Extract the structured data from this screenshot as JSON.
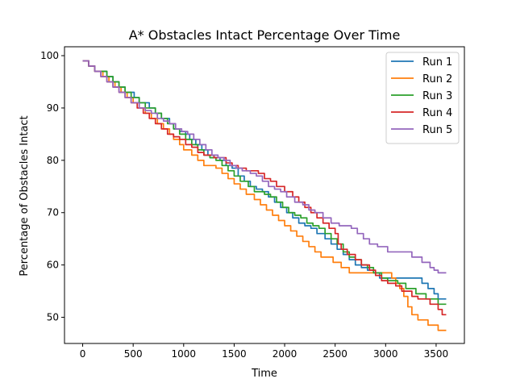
{
  "chart_data": {
    "type": "line",
    "title": "A* Obstacles Intact Percentage Over Time",
    "xlabel": "Time",
    "ylabel": "Percentage of Obstacles Intact",
    "xlim": [
      -180,
      3780
    ],
    "ylim": [
      45.0,
      101.7
    ],
    "xticks": [
      0,
      500,
      1000,
      1500,
      2000,
      2500,
      3000,
      3500
    ],
    "yticks": [
      50,
      60,
      70,
      80,
      90,
      100
    ],
    "grid": false,
    "legend_position": "top-right",
    "drawstyle": "steps-post",
    "series": [
      {
        "name": "Run 1",
        "color": "#1f77b4",
        "points": [
          [
            0,
            99
          ],
          [
            60,
            98
          ],
          [
            120,
            97
          ],
          [
            240,
            96
          ],
          [
            300,
            95
          ],
          [
            360,
            94
          ],
          [
            420,
            93
          ],
          [
            510,
            92
          ],
          [
            560,
            91
          ],
          [
            660,
            90
          ],
          [
            720,
            89
          ],
          [
            780,
            88
          ],
          [
            860,
            87
          ],
          [
            900,
            86
          ],
          [
            960,
            85.5
          ],
          [
            1020,
            85
          ],
          [
            1060,
            84
          ],
          [
            1120,
            83
          ],
          [
            1180,
            82
          ],
          [
            1240,
            81
          ],
          [
            1300,
            80.5
          ],
          [
            1360,
            80
          ],
          [
            1420,
            79
          ],
          [
            1480,
            78.5
          ],
          [
            1540,
            77
          ],
          [
            1600,
            76
          ],
          [
            1660,
            75
          ],
          [
            1720,
            74.5
          ],
          [
            1780,
            74
          ],
          [
            1840,
            73
          ],
          [
            1900,
            72
          ],
          [
            1960,
            71
          ],
          [
            2020,
            70
          ],
          [
            2080,
            69
          ],
          [
            2140,
            68
          ],
          [
            2200,
            67.5
          ],
          [
            2260,
            67
          ],
          [
            2320,
            66
          ],
          [
            2400,
            65
          ],
          [
            2460,
            64
          ],
          [
            2520,
            63
          ],
          [
            2580,
            62
          ],
          [
            2640,
            61
          ],
          [
            2700,
            60
          ],
          [
            2760,
            59.5
          ],
          [
            2820,
            59
          ],
          [
            2880,
            58.5
          ],
          [
            2940,
            57.5
          ],
          [
            3000,
            57.5
          ],
          [
            3320,
            57.5
          ],
          [
            3360,
            56.5
          ],
          [
            3420,
            55.5
          ],
          [
            3480,
            54.5
          ],
          [
            3520,
            53.5
          ],
          [
            3600,
            53.5
          ]
        ]
      },
      {
        "name": "Run 2",
        "color": "#ff7f0e",
        "points": [
          [
            0,
            99
          ],
          [
            60,
            98
          ],
          [
            120,
            97
          ],
          [
            200,
            96
          ],
          [
            260,
            95
          ],
          [
            320,
            94
          ],
          [
            380,
            93
          ],
          [
            440,
            92
          ],
          [
            500,
            91
          ],
          [
            560,
            90
          ],
          [
            620,
            89
          ],
          [
            680,
            88
          ],
          [
            740,
            87
          ],
          [
            800,
            86
          ],
          [
            860,
            85
          ],
          [
            900,
            84
          ],
          [
            960,
            83
          ],
          [
            1000,
            82
          ],
          [
            1080,
            81
          ],
          [
            1140,
            80
          ],
          [
            1200,
            79
          ],
          [
            1320,
            78.5
          ],
          [
            1380,
            77.5
          ],
          [
            1440,
            76.5
          ],
          [
            1500,
            75.5
          ],
          [
            1560,
            74.5
          ],
          [
            1620,
            73.5
          ],
          [
            1700,
            72.5
          ],
          [
            1760,
            71.5
          ],
          [
            1820,
            70.5
          ],
          [
            1880,
            69.5
          ],
          [
            1940,
            68.5
          ],
          [
            2000,
            67.5
          ],
          [
            2060,
            66.5
          ],
          [
            2120,
            65.5
          ],
          [
            2180,
            64.5
          ],
          [
            2240,
            63.5
          ],
          [
            2300,
            62.5
          ],
          [
            2360,
            61.5
          ],
          [
            2480,
            60.5
          ],
          [
            2560,
            59.5
          ],
          [
            2640,
            58.5
          ],
          [
            2840,
            58.5
          ],
          [
            3060,
            57.5
          ],
          [
            3100,
            56.5
          ],
          [
            3140,
            55.5
          ],
          [
            3180,
            54
          ],
          [
            3220,
            52
          ],
          [
            3260,
            50.5
          ],
          [
            3320,
            49.5
          ],
          [
            3420,
            48.5
          ],
          [
            3520,
            47.5
          ],
          [
            3600,
            47.5
          ]
        ]
      },
      {
        "name": "Run 3",
        "color": "#2ca02c",
        "points": [
          [
            0,
            99
          ],
          [
            60,
            98
          ],
          [
            120,
            97
          ],
          [
            240,
            96
          ],
          [
            300,
            95
          ],
          [
            360,
            94
          ],
          [
            420,
            93
          ],
          [
            480,
            92
          ],
          [
            560,
            91
          ],
          [
            620,
            90
          ],
          [
            720,
            89
          ],
          [
            780,
            88
          ],
          [
            840,
            87
          ],
          [
            900,
            86
          ],
          [
            960,
            85
          ],
          [
            1020,
            84
          ],
          [
            1080,
            83
          ],
          [
            1140,
            82
          ],
          [
            1200,
            81
          ],
          [
            1260,
            80.5
          ],
          [
            1320,
            80
          ],
          [
            1380,
            79
          ],
          [
            1440,
            78
          ],
          [
            1500,
            77
          ],
          [
            1560,
            76
          ],
          [
            1640,
            75
          ],
          [
            1700,
            74
          ],
          [
            1800,
            73.5
          ],
          [
            1860,
            73
          ],
          [
            1920,
            72
          ],
          [
            1980,
            71
          ],
          [
            2040,
            70
          ],
          [
            2100,
            69.5
          ],
          [
            2160,
            69
          ],
          [
            2220,
            68
          ],
          [
            2280,
            67.5
          ],
          [
            2340,
            67
          ],
          [
            2400,
            66
          ],
          [
            2460,
            65
          ],
          [
            2520,
            64
          ],
          [
            2580,
            62.5
          ],
          [
            2640,
            61.5
          ],
          [
            2700,
            61
          ],
          [
            2760,
            60
          ],
          [
            2820,
            59.5
          ],
          [
            2880,
            58.5
          ],
          [
            2960,
            57.5
          ],
          [
            3020,
            57
          ],
          [
            3120,
            56.5
          ],
          [
            3200,
            55.5
          ],
          [
            3300,
            54.5
          ],
          [
            3400,
            53.5
          ],
          [
            3520,
            52.5
          ],
          [
            3600,
            52.5
          ]
        ]
      },
      {
        "name": "Run 4",
        "color": "#d62728",
        "points": [
          [
            0,
            99
          ],
          [
            60,
            98
          ],
          [
            120,
            97
          ],
          [
            180,
            96
          ],
          [
            240,
            95
          ],
          [
            300,
            94
          ],
          [
            360,
            93
          ],
          [
            420,
            92
          ],
          [
            480,
            91
          ],
          [
            540,
            90
          ],
          [
            600,
            89
          ],
          [
            660,
            88
          ],
          [
            720,
            87
          ],
          [
            780,
            86
          ],
          [
            840,
            85
          ],
          [
            900,
            84.5
          ],
          [
            960,
            84
          ],
          [
            1020,
            83
          ],
          [
            1080,
            82.5
          ],
          [
            1140,
            81.5
          ],
          [
            1200,
            81
          ],
          [
            1300,
            80.5
          ],
          [
            1420,
            79.5
          ],
          [
            1480,
            79
          ],
          [
            1540,
            78.5
          ],
          [
            1620,
            78
          ],
          [
            1740,
            77.5
          ],
          [
            1800,
            76.5
          ],
          [
            1860,
            76
          ],
          [
            1920,
            75
          ],
          [
            2000,
            74
          ],
          [
            2080,
            73
          ],
          [
            2140,
            72
          ],
          [
            2200,
            71
          ],
          [
            2260,
            70
          ],
          [
            2320,
            69
          ],
          [
            2380,
            68
          ],
          [
            2440,
            67
          ],
          [
            2500,
            66
          ],
          [
            2530,
            64
          ],
          [
            2560,
            63
          ],
          [
            2620,
            62
          ],
          [
            2700,
            61
          ],
          [
            2760,
            60
          ],
          [
            2840,
            59
          ],
          [
            2900,
            58
          ],
          [
            2960,
            57
          ],
          [
            3020,
            56.5
          ],
          [
            3100,
            56
          ],
          [
            3160,
            55
          ],
          [
            3260,
            54
          ],
          [
            3320,
            53.5
          ],
          [
            3440,
            52.5
          ],
          [
            3520,
            51.5
          ],
          [
            3560,
            50.5
          ],
          [
            3600,
            50.5
          ]
        ]
      },
      {
        "name": "Run 5",
        "color": "#9467bd",
        "points": [
          [
            0,
            99
          ],
          [
            60,
            98
          ],
          [
            120,
            97
          ],
          [
            180,
            96
          ],
          [
            240,
            95
          ],
          [
            300,
            94
          ],
          [
            360,
            93
          ],
          [
            420,
            92
          ],
          [
            480,
            91
          ],
          [
            560,
            90
          ],
          [
            620,
            89.5
          ],
          [
            680,
            89
          ],
          [
            740,
            88
          ],
          [
            800,
            87.5
          ],
          [
            860,
            87
          ],
          [
            920,
            86
          ],
          [
            980,
            85.5
          ],
          [
            1040,
            85
          ],
          [
            1100,
            84
          ],
          [
            1160,
            83
          ],
          [
            1220,
            82
          ],
          [
            1280,
            81
          ],
          [
            1340,
            80.5
          ],
          [
            1400,
            80
          ],
          [
            1460,
            79
          ],
          [
            1520,
            78.5
          ],
          [
            1580,
            78
          ],
          [
            1660,
            77.5
          ],
          [
            1720,
            77
          ],
          [
            1780,
            76
          ],
          [
            1840,
            75
          ],
          [
            1900,
            74.5
          ],
          [
            1960,
            74
          ],
          [
            2020,
            73
          ],
          [
            2100,
            72
          ],
          [
            2180,
            71.5
          ],
          [
            2240,
            70.5
          ],
          [
            2300,
            70
          ],
          [
            2380,
            69
          ],
          [
            2460,
            68
          ],
          [
            2540,
            67.5
          ],
          [
            2660,
            67
          ],
          [
            2720,
            66
          ],
          [
            2780,
            65
          ],
          [
            2840,
            64
          ],
          [
            2920,
            63.5
          ],
          [
            3020,
            62.5
          ],
          [
            3260,
            61.5
          ],
          [
            3360,
            60.5
          ],
          [
            3440,
            59.5
          ],
          [
            3480,
            59
          ],
          [
            3520,
            58.5
          ],
          [
            3600,
            58.5
          ]
        ]
      }
    ]
  }
}
